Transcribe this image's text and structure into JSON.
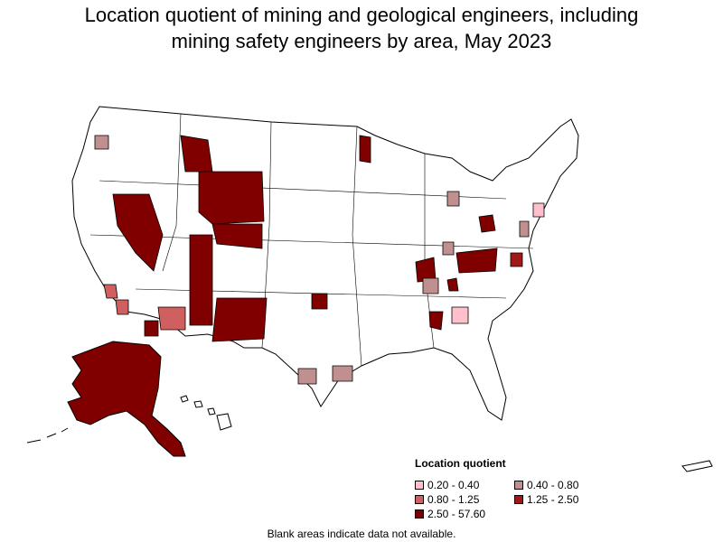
{
  "title_line1": "Location quotient of mining and geological engineers, including",
  "title_line2": "mining safety engineers by area, May 2023",
  "legend": {
    "title": "Location quotient",
    "items": [
      {
        "label": "0.20 - 0.40",
        "color": "#ffc0cb"
      },
      {
        "label": "0.40 - 0.80",
        "color": "#c09090"
      },
      {
        "label": "0.80 - 1.25",
        "color": "#d06060"
      },
      {
        "label": "1.25 - 2.50",
        "color": "#a01818"
      },
      {
        "label": "2.50 - 57.60",
        "color": "#800000"
      }
    ]
  },
  "note": "Blank areas indicate data not available."
}
